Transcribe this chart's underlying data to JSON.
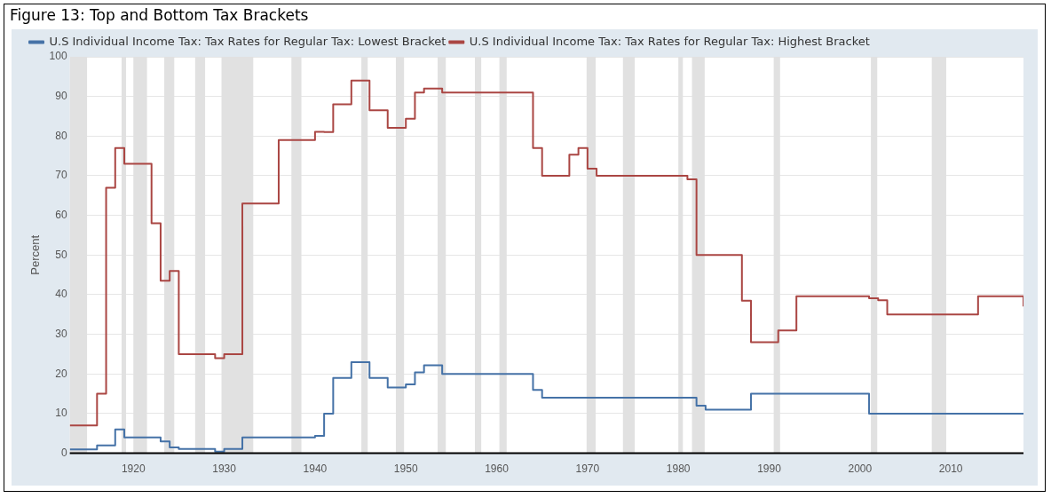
{
  "chart_data": {
    "type": "step",
    "title": "Figure 13: Top and Bottom Tax Brackets",
    "ylabel": "Percent",
    "xlim": [
      1913,
      2018
    ],
    "xticks": [
      1920,
      1930,
      1940,
      1950,
      1960,
      1970,
      1980,
      1990,
      2000,
      2010
    ],
    "ylim": [
      0,
      100
    ],
    "yticks": [
      0,
      10,
      20,
      30,
      40,
      50,
      60,
      70,
      80,
      90,
      100
    ],
    "grid": "y",
    "legend": "top left",
    "marker": "none",
    "line_style": "solid",
    "series": [
      {
        "name": "U.S Individual Income Tax: Tax Rates for Regular Tax: Lowest Bracket",
        "color": "#4572a7",
        "x": [
          1913,
          1916,
          1918,
          1919,
          1923,
          1924,
          1925,
          1929,
          1930,
          1932,
          1940,
          1941,
          1942,
          1944,
          1946,
          1948,
          1950,
          1951,
          1952,
          1954,
          1964,
          1965,
          1982,
          1983,
          1988,
          2001,
          2018
        ],
        "values": [
          1,
          2,
          6,
          4,
          3,
          1.5,
          1.1,
          0.4,
          1.1,
          4,
          4.4,
          10,
          19,
          23,
          19,
          16.6,
          17.4,
          20.4,
          22.2,
          20,
          16,
          14,
          12,
          11,
          15,
          10,
          10
        ]
      },
      {
        "name": "U.S Individual Income Tax: Tax Rates for Regular Tax: Highest Bracket",
        "color": "#aa4643",
        "x": [
          1913,
          1916,
          1917,
          1918,
          1919,
          1922,
          1923,
          1924,
          1925,
          1929,
          1930,
          1932,
          1936,
          1940,
          1941,
          1942,
          1944,
          1946,
          1948,
          1950,
          1951,
          1952,
          1954,
          1964,
          1965,
          1968,
          1969,
          1970,
          1971,
          1981,
          1982,
          1987,
          1988,
          1991,
          1993,
          2001,
          2002,
          2003,
          2013,
          2018
        ],
        "values": [
          7,
          15,
          67,
          77,
          73,
          58,
          43.5,
          46,
          25,
          24,
          25,
          63,
          79,
          81.1,
          81,
          88,
          94,
          86.5,
          82.1,
          84.4,
          91,
          92,
          91,
          77,
          70,
          75.3,
          77,
          71.8,
          70,
          69.1,
          50,
          38.5,
          28,
          31,
          39.6,
          39.1,
          38.6,
          35,
          39.6,
          37
        ]
      }
    ],
    "bands": [
      {
        "axis": "x",
        "from": 1913.0,
        "to": 1914.9,
        "color": "#e1e1e1"
      },
      {
        "axis": "x",
        "from": 1918.7,
        "to": 1919.2,
        "color": "#e1e1e1"
      },
      {
        "axis": "x",
        "from": 1920.0,
        "to": 1921.5,
        "color": "#e1e1e1"
      },
      {
        "axis": "x",
        "from": 1923.4,
        "to": 1924.5,
        "color": "#e1e1e1"
      },
      {
        "axis": "x",
        "from": 1926.8,
        "to": 1927.9,
        "color": "#e1e1e1"
      },
      {
        "axis": "x",
        "from": 1929.7,
        "to": 1933.2,
        "color": "#e1e1e1"
      },
      {
        "axis": "x",
        "from": 1937.4,
        "to": 1938.5,
        "color": "#e1e1e1"
      },
      {
        "axis": "x",
        "from": 1945.1,
        "to": 1945.8,
        "color": "#e1e1e1"
      },
      {
        "axis": "x",
        "from": 1948.9,
        "to": 1949.8,
        "color": "#e1e1e1"
      },
      {
        "axis": "x",
        "from": 1953.5,
        "to": 1954.4,
        "color": "#e1e1e1"
      },
      {
        "axis": "x",
        "from": 1957.6,
        "to": 1958.3,
        "color": "#e1e1e1"
      },
      {
        "axis": "x",
        "from": 1960.3,
        "to": 1961.1,
        "color": "#e1e1e1"
      },
      {
        "axis": "x",
        "from": 1969.9,
        "to": 1970.9,
        "color": "#e1e1e1"
      },
      {
        "axis": "x",
        "from": 1973.9,
        "to": 1975.2,
        "color": "#e1e1e1"
      },
      {
        "axis": "x",
        "from": 1980.0,
        "to": 1980.5,
        "color": "#e1e1e1"
      },
      {
        "axis": "x",
        "from": 1981.5,
        "to": 1982.9,
        "color": "#e1e1e1"
      },
      {
        "axis": "x",
        "from": 1990.5,
        "to": 1991.2,
        "color": "#e1e1e1"
      },
      {
        "axis": "x",
        "from": 2001.2,
        "to": 2001.9,
        "color": "#e1e1e1"
      },
      {
        "axis": "x",
        "from": 2007.9,
        "to": 2009.5,
        "color": "#e1e1e1"
      }
    ]
  }
}
